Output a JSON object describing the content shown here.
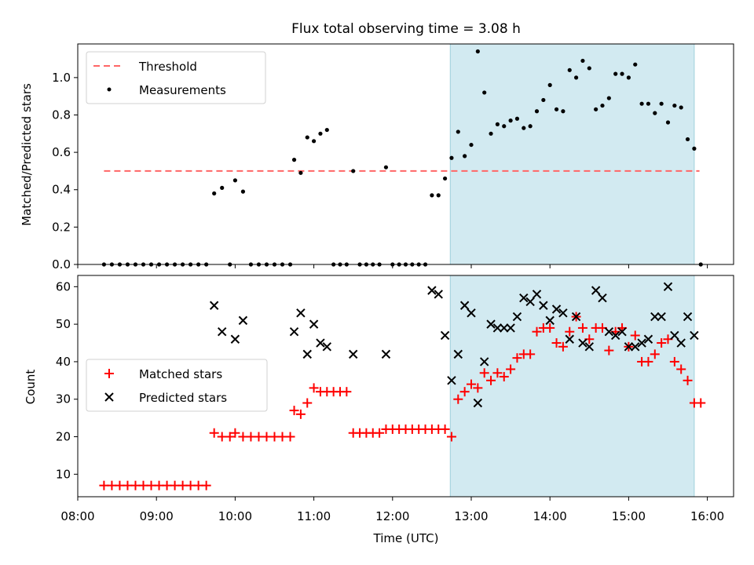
{
  "chart_data": [
    {
      "type": "scatter",
      "title": "Flux total observing time = 3.08 h",
      "ylabel": "Matched/Predicted stars",
      "xlim": [
        "08:00",
        "16:20"
      ],
      "ylim": [
        0,
        1.18
      ],
      "yticks": [
        "0.0",
        "0.2",
        "0.4",
        "0.6",
        "0.8",
        "1.0"
      ],
      "highlight_span": [
        "12:44",
        "15:50"
      ],
      "threshold": {
        "name": "Threshold",
        "y": 0.5,
        "x_range": [
          "08:20",
          "15:54"
        ],
        "color": "#ff6666"
      },
      "legend_position": "upper-left",
      "series": [
        {
          "name": "Measurements",
          "color": "#000000",
          "points": [
            [
              "08:20",
              0.0
            ],
            [
              "08:26",
              0.0
            ],
            [
              "08:32",
              0.0
            ],
            [
              "08:38",
              0.0
            ],
            [
              "08:44",
              0.0
            ],
            [
              "08:50",
              0.0
            ],
            [
              "08:56",
              0.0
            ],
            [
              "09:02",
              0.0
            ],
            [
              "09:08",
              0.0
            ],
            [
              "09:14",
              0.0
            ],
            [
              "09:20",
              0.0
            ],
            [
              "09:26",
              0.0
            ],
            [
              "09:32",
              0.0
            ],
            [
              "09:38",
              0.0
            ],
            [
              "09:44",
              0.38
            ],
            [
              "09:50",
              0.41
            ],
            [
              "09:56",
              0.0
            ],
            [
              "10:00",
              0.45
            ],
            [
              "10:06",
              0.39
            ],
            [
              "10:12",
              0.0
            ],
            [
              "10:18",
              0.0
            ],
            [
              "10:24",
              0.0
            ],
            [
              "10:30",
              0.0
            ],
            [
              "10:36",
              0.0
            ],
            [
              "10:42",
              0.0
            ],
            [
              "10:45",
              0.56
            ],
            [
              "10:50",
              0.49
            ],
            [
              "10:55",
              0.68
            ],
            [
              "11:00",
              0.66
            ],
            [
              "11:05",
              0.7
            ],
            [
              "11:10",
              0.72
            ],
            [
              "11:15",
              0.0
            ],
            [
              "11:20",
              0.0
            ],
            [
              "11:25",
              0.0
            ],
            [
              "11:30",
              0.5
            ],
            [
              "11:35",
              0.0
            ],
            [
              "11:40",
              0.0
            ],
            [
              "11:45",
              0.0
            ],
            [
              "11:50",
              0.0
            ],
            [
              "11:55",
              0.52
            ],
            [
              "12:00",
              0.0
            ],
            [
              "12:05",
              0.0
            ],
            [
              "12:10",
              0.0
            ],
            [
              "12:15",
              0.0
            ],
            [
              "12:20",
              0.0
            ],
            [
              "12:25",
              0.0
            ],
            [
              "12:30",
              0.37
            ],
            [
              "12:35",
              0.37
            ],
            [
              "12:40",
              0.46
            ],
            [
              "12:45",
              0.57
            ],
            [
              "12:50",
              0.71
            ],
            [
              "12:55",
              0.58
            ],
            [
              "13:00",
              0.64
            ],
            [
              "13:05",
              1.14
            ],
            [
              "13:10",
              0.92
            ],
            [
              "13:15",
              0.7
            ],
            [
              "13:20",
              0.75
            ],
            [
              "13:25",
              0.74
            ],
            [
              "13:30",
              0.77
            ],
            [
              "13:35",
              0.78
            ],
            [
              "13:40",
              0.73
            ],
            [
              "13:45",
              0.74
            ],
            [
              "13:50",
              0.82
            ],
            [
              "13:55",
              0.88
            ],
            [
              "14:00",
              0.96
            ],
            [
              "14:05",
              0.83
            ],
            [
              "14:10",
              0.82
            ],
            [
              "14:15",
              1.04
            ],
            [
              "14:20",
              1.0
            ],
            [
              "14:25",
              1.09
            ],
            [
              "14:30",
              1.05
            ],
            [
              "14:35",
              0.83
            ],
            [
              "14:40",
              0.85
            ],
            [
              "14:45",
              0.89
            ],
            [
              "14:50",
              1.02
            ],
            [
              "14:55",
              1.02
            ],
            [
              "15:00",
              1.0
            ],
            [
              "15:05",
              1.07
            ],
            [
              "15:10",
              0.86
            ],
            [
              "15:15",
              0.86
            ],
            [
              "15:20",
              0.81
            ],
            [
              "15:25",
              0.86
            ],
            [
              "15:30",
              0.76
            ],
            [
              "15:35",
              0.85
            ],
            [
              "15:40",
              0.84
            ],
            [
              "15:45",
              0.67
            ],
            [
              "15:50",
              0.62
            ],
            [
              "15:55",
              0.0
            ]
          ]
        }
      ]
    },
    {
      "type": "scatter",
      "xlabel": "Time (UTC)",
      "ylabel": "Count",
      "xlim": [
        "08:00",
        "16:20"
      ],
      "ylim": [
        4,
        63
      ],
      "yticks": [
        "10",
        "20",
        "30",
        "40",
        "50",
        "60"
      ],
      "xticks": [
        "08:00",
        "09:00",
        "10:00",
        "11:00",
        "12:00",
        "13:00",
        "14:00",
        "15:00",
        "16:00"
      ],
      "highlight_span": [
        "12:44",
        "15:50"
      ],
      "legend_position": "center-left",
      "series": [
        {
          "name": "Matched stars",
          "marker": "plus",
          "color": "#ff0000",
          "points": [
            [
              "08:20",
              7
            ],
            [
              "08:26",
              7
            ],
            [
              "08:32",
              7
            ],
            [
              "08:38",
              7
            ],
            [
              "08:44",
              7
            ],
            [
              "08:50",
              7
            ],
            [
              "08:56",
              7
            ],
            [
              "09:02",
              7
            ],
            [
              "09:08",
              7
            ],
            [
              "09:14",
              7
            ],
            [
              "09:20",
              7
            ],
            [
              "09:26",
              7
            ],
            [
              "09:32",
              7
            ],
            [
              "09:38",
              7
            ],
            [
              "09:44",
              21
            ],
            [
              "09:50",
              20
            ],
            [
              "09:56",
              20
            ],
            [
              "10:00",
              21
            ],
            [
              "10:06",
              20
            ],
            [
              "10:12",
              20
            ],
            [
              "10:18",
              20
            ],
            [
              "10:24",
              20
            ],
            [
              "10:30",
              20
            ],
            [
              "10:36",
              20
            ],
            [
              "10:42",
              20
            ],
            [
              "10:45",
              27
            ],
            [
              "10:50",
              26
            ],
            [
              "10:55",
              29
            ],
            [
              "11:00",
              33
            ],
            [
              "11:05",
              32
            ],
            [
              "11:10",
              32
            ],
            [
              "11:15",
              32
            ],
            [
              "11:20",
              32
            ],
            [
              "11:25",
              32
            ],
            [
              "11:30",
              21
            ],
            [
              "11:35",
              21
            ],
            [
              "11:40",
              21
            ],
            [
              "11:45",
              21
            ],
            [
              "11:50",
              21
            ],
            [
              "11:55",
              22
            ],
            [
              "12:00",
              22
            ],
            [
              "12:05",
              22
            ],
            [
              "12:10",
              22
            ],
            [
              "12:15",
              22
            ],
            [
              "12:20",
              22
            ],
            [
              "12:25",
              22
            ],
            [
              "12:30",
              22
            ],
            [
              "12:35",
              22
            ],
            [
              "12:40",
              22
            ],
            [
              "12:45",
              20
            ],
            [
              "12:50",
              30
            ],
            [
              "12:55",
              32
            ],
            [
              "13:00",
              34
            ],
            [
              "13:05",
              33
            ],
            [
              "13:10",
              37
            ],
            [
              "13:15",
              35
            ],
            [
              "13:20",
              37
            ],
            [
              "13:25",
              36
            ],
            [
              "13:30",
              38
            ],
            [
              "13:35",
              41
            ],
            [
              "13:40",
              42
            ],
            [
              "13:45",
              42
            ],
            [
              "13:50",
              48
            ],
            [
              "13:55",
              49
            ],
            [
              "14:00",
              49
            ],
            [
              "14:05",
              45
            ],
            [
              "14:10",
              44
            ],
            [
              "14:15",
              48
            ],
            [
              "14:20",
              52
            ],
            [
              "14:25",
              49
            ],
            [
              "14:30",
              46
            ],
            [
              "14:35",
              49
            ],
            [
              "14:40",
              49
            ],
            [
              "14:45",
              43
            ],
            [
              "14:50",
              48
            ],
            [
              "14:55",
              49
            ],
            [
              "15:00",
              44
            ],
            [
              "15:05",
              47
            ],
            [
              "15:10",
              40
            ],
            [
              "15:15",
              40
            ],
            [
              "15:20",
              42
            ],
            [
              "15:25",
              45
            ],
            [
              "15:30",
              46
            ],
            [
              "15:35",
              40
            ],
            [
              "15:40",
              38
            ],
            [
              "15:45",
              35
            ],
            [
              "15:50",
              29
            ],
            [
              "15:55",
              29
            ]
          ]
        },
        {
          "name": "Predicted stars",
          "marker": "x",
          "color": "#000000",
          "points": [
            [
              "09:44",
              55
            ],
            [
              "09:50",
              48
            ],
            [
              "10:00",
              46
            ],
            [
              "10:06",
              51
            ],
            [
              "10:45",
              48
            ],
            [
              "10:50",
              53
            ],
            [
              "10:55",
              42
            ],
            [
              "11:00",
              50
            ],
            [
              "11:05",
              45
            ],
            [
              "11:10",
              44
            ],
            [
              "11:30",
              42
            ],
            [
              "11:55",
              42
            ],
            [
              "12:30",
              59
            ],
            [
              "12:35",
              58
            ],
            [
              "12:40",
              47
            ],
            [
              "12:45",
              35
            ],
            [
              "12:50",
              42
            ],
            [
              "12:55",
              55
            ],
            [
              "13:00",
              53
            ],
            [
              "13:05",
              29
            ],
            [
              "13:10",
              40
            ],
            [
              "13:15",
              50
            ],
            [
              "13:20",
              49
            ],
            [
              "13:25",
              49
            ],
            [
              "13:30",
              49
            ],
            [
              "13:35",
              52
            ],
            [
              "13:40",
              57
            ],
            [
              "13:45",
              56
            ],
            [
              "13:50",
              58
            ],
            [
              "13:55",
              55
            ],
            [
              "14:00",
              51
            ],
            [
              "14:05",
              54
            ],
            [
              "14:10",
              53
            ],
            [
              "14:15",
              46
            ],
            [
              "14:20",
              52
            ],
            [
              "14:25",
              45
            ],
            [
              "14:30",
              44
            ],
            [
              "14:35",
              59
            ],
            [
              "14:40",
              57
            ],
            [
              "14:45",
              48
            ],
            [
              "14:50",
              47
            ],
            [
              "14:55",
              48
            ],
            [
              "15:00",
              44
            ],
            [
              "15:05",
              44
            ],
            [
              "15:10",
              45
            ],
            [
              "15:15",
              46
            ],
            [
              "15:20",
              52
            ],
            [
              "15:25",
              52
            ],
            [
              "15:30",
              60
            ],
            [
              "15:35",
              47
            ],
            [
              "15:40",
              45
            ],
            [
              "15:45",
              52
            ],
            [
              "15:50",
              47
            ]
          ]
        }
      ]
    }
  ]
}
